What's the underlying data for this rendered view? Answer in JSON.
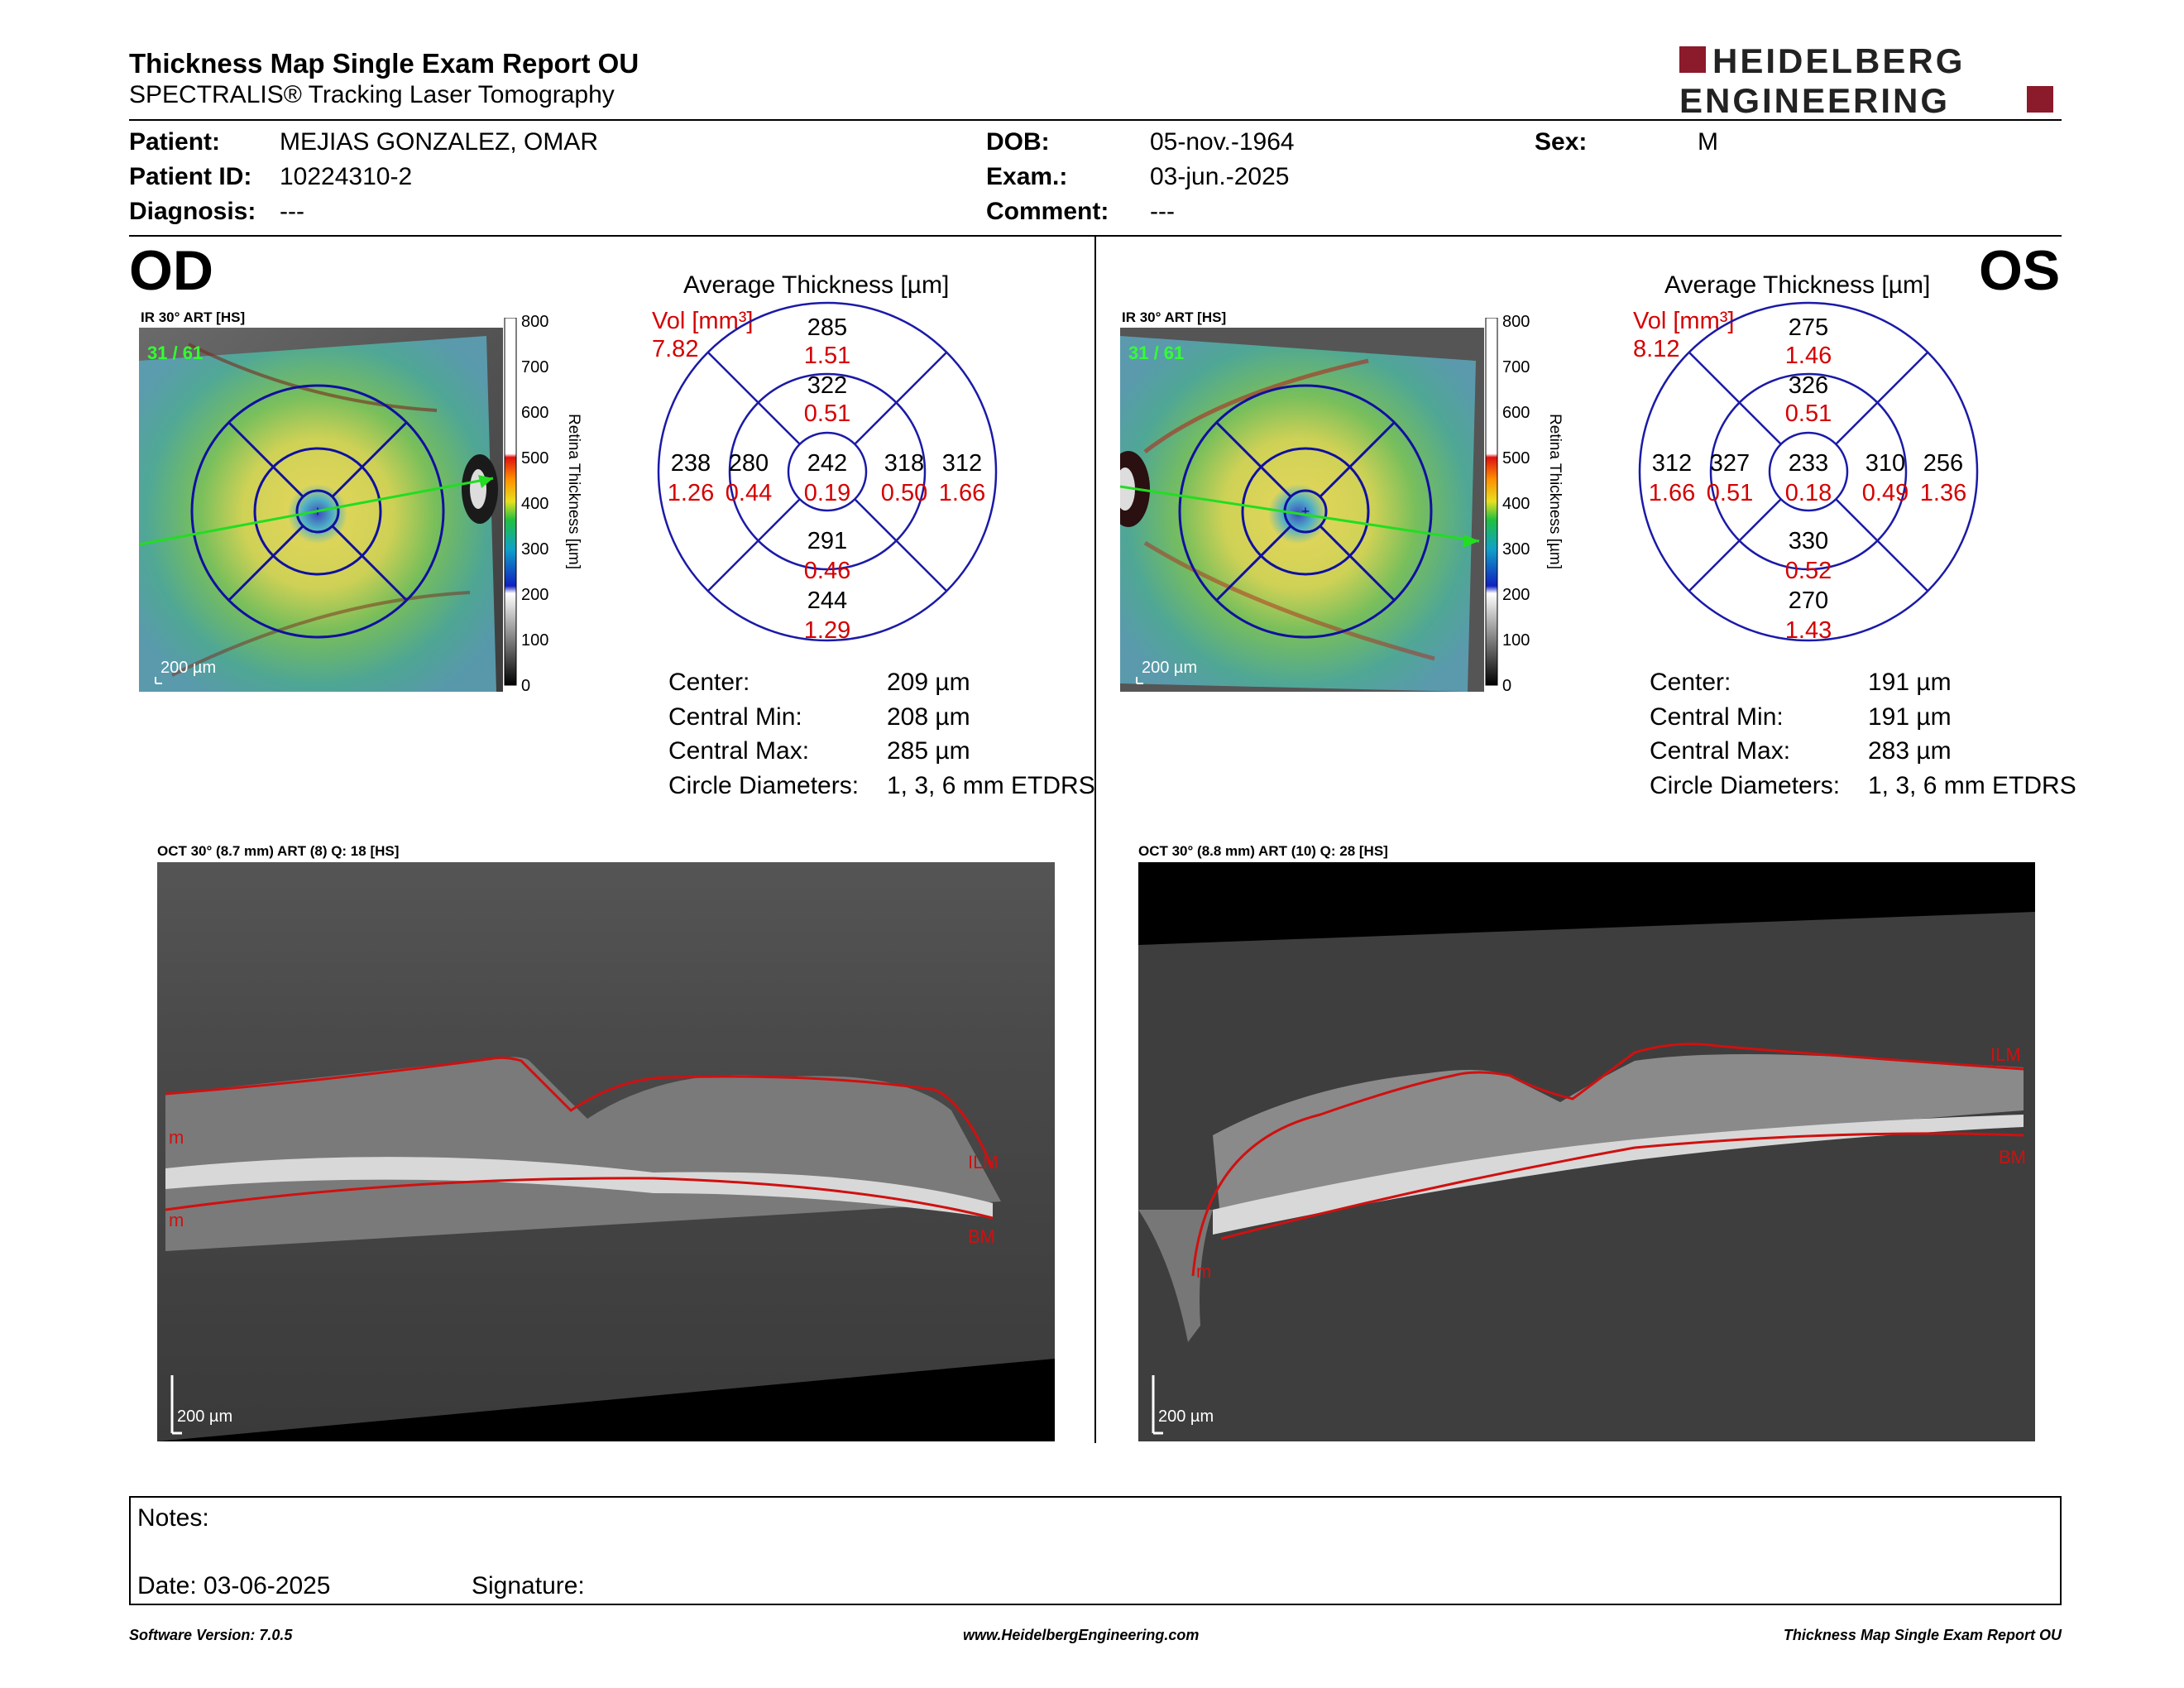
{
  "header": {
    "title": "Thickness Map Single Exam Report OU",
    "subtitle": "SPECTRALIS® Tracking Laser Tomography",
    "logo_line1": "HEIDELBERG",
    "logo_line2": "ENGINEERING",
    "logo_color": "#8b1a2b"
  },
  "patient": {
    "patient_label": "Patient:",
    "patient_value": "MEJIAS GONZALEZ, OMAR",
    "id_label": "Patient ID:",
    "id_value": "10224310-2",
    "diagnosis_label": "Diagnosis:",
    "diagnosis_value": "---",
    "dob_label": "DOB:",
    "dob_value": "05-nov.-1964",
    "exam_label": "Exam.:",
    "exam_value": "03-jun.-2025",
    "comment_label": "Comment:",
    "comment_value": "---",
    "sex_label": "Sex:",
    "sex_value": "M"
  },
  "colorbar": {
    "ticks": [
      "800",
      "700",
      "600",
      "500",
      "400",
      "300",
      "200",
      "100",
      "0"
    ],
    "label": "Retina Thickness [µm]"
  },
  "od": {
    "eye": "OD",
    "fundus_title": "IR 30° ART [HS]",
    "fundus_overlay": "31 / 61",
    "scale": "200 µm",
    "avg_title": "Average Thickness [µm]",
    "vol_label": "Vol [mm³]",
    "vol_value": "7.82",
    "etdrs": {
      "center": [
        "242",
        "0.19"
      ],
      "sup_inner": [
        "322",
        "0.51"
      ],
      "sup_outer": [
        "285",
        "1.51"
      ],
      "inf_inner": [
        "291",
        "0.46"
      ],
      "inf_outer": [
        "244",
        "1.29"
      ],
      "left_inner": [
        "280",
        "0.44"
      ],
      "left_outer": [
        "238",
        "1.26"
      ],
      "right_inner": [
        "318",
        "0.50"
      ],
      "right_outer": [
        "312",
        "1.66"
      ]
    },
    "stats": [
      {
        "label": "Center:",
        "value": "209 µm"
      },
      {
        "label": "Central Min:",
        "value": "208 µm"
      },
      {
        "label": "Central Max:",
        "value": "285 µm"
      },
      {
        "label": "Circle Diameters:",
        "value": "1, 3, 6 mm ETDRS"
      }
    ],
    "oct_title": "OCT 30° (8.7 mm) ART (8) Q: 18 [HS]",
    "oct_scale": "200 µm",
    "ilm": "ILM",
    "bm": "BM",
    "m1": "m",
    "m2": "m"
  },
  "os": {
    "eye": "OS",
    "fundus_title": "IR 30° ART [HS]",
    "fundus_overlay": "31 / 61",
    "scale": "200 µm",
    "avg_title": "Average Thickness [µm]",
    "vol_label": "Vol [mm³]",
    "vol_value": "8.12",
    "etdrs": {
      "center": [
        "233",
        "0.18"
      ],
      "sup_inner": [
        "326",
        "0.51"
      ],
      "sup_outer": [
        "275",
        "1.46"
      ],
      "inf_inner": [
        "330",
        "0.52"
      ],
      "inf_outer": [
        "270",
        "1.43"
      ],
      "left_inner": [
        "327",
        "0.51"
      ],
      "left_outer": [
        "312",
        "1.66"
      ],
      "right_inner": [
        "310",
        "0.49"
      ],
      "right_outer": [
        "256",
        "1.36"
      ]
    },
    "stats": [
      {
        "label": "Center:",
        "value": "191 µm"
      },
      {
        "label": "Central Min:",
        "value": "191 µm"
      },
      {
        "label": "Central Max:",
        "value": "283 µm"
      },
      {
        "label": "Circle Diameters:",
        "value": "1, 3, 6 mm ETDRS"
      }
    ],
    "oct_title": "OCT 30° (8.8 mm) ART (10) Q: 28 [HS]",
    "oct_scale": "200 µm",
    "ilm": "ILM",
    "bm": "BM",
    "m1": "m"
  },
  "notes": {
    "notes_label": "Notes:",
    "date_label": "Date: 03-06-2025",
    "signature_label": "Signature:"
  },
  "footer": {
    "left": "Software Version: 7.0.5",
    "center": "www.HeidelbergEngineering.com",
    "right": "Thickness Map Single Exam Report OU"
  },
  "colors": {
    "etdrs_ring": "#1a1aa8",
    "volume_red": "#d40000",
    "segmentation_red": "#d01010"
  }
}
